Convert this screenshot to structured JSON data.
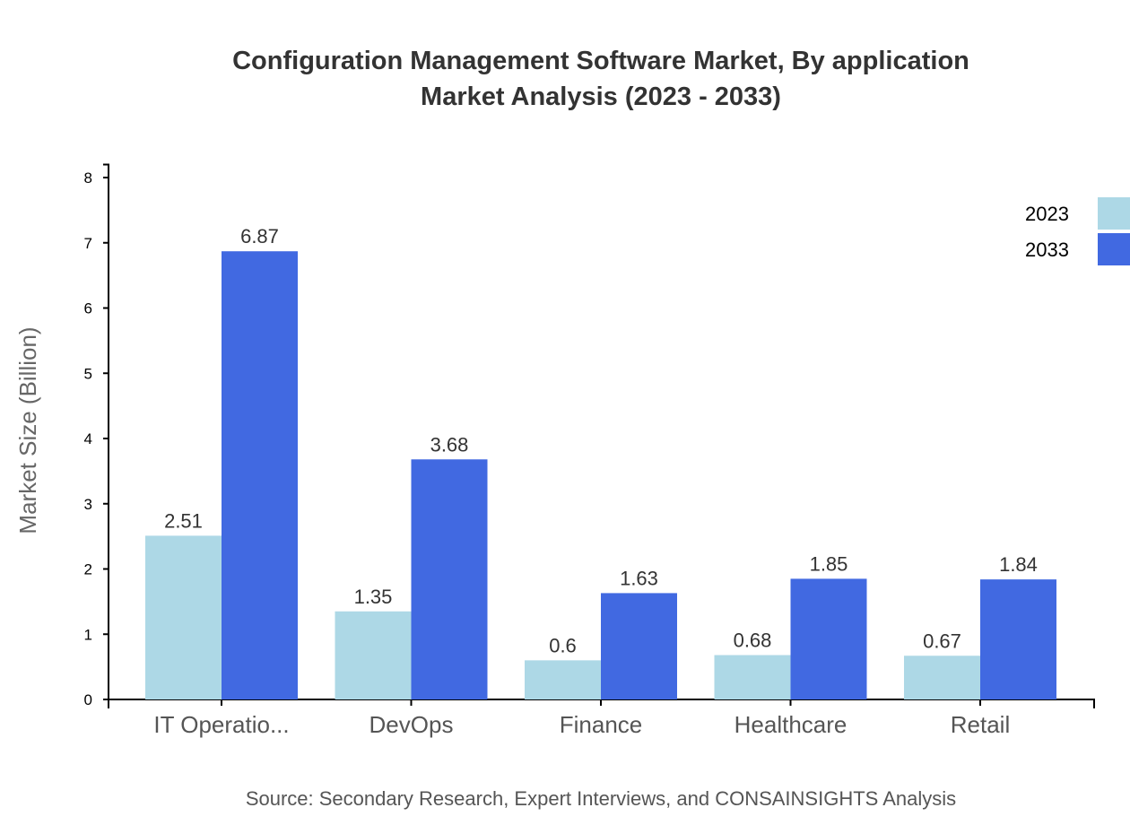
{
  "chart_data": {
    "type": "bar",
    "title": "Configuration Management Software Market, By application",
    "subtitle": "Market Analysis (2023 - 2033)",
    "xlabel": "",
    "ylabel": "Market Size (Billion)",
    "ylim": [
      0,
      8.2
    ],
    "yticks": [
      0,
      1,
      2,
      3,
      4,
      5,
      6,
      7,
      8
    ],
    "grid": false,
    "legend_position": "top-right",
    "categories": [
      "IT Operatio...",
      "DevOps",
      "Finance",
      "Healthcare",
      "Retail"
    ],
    "series": [
      {
        "name": "2023",
        "color": "#add8e6",
        "values": [
          2.51,
          1.35,
          0.6,
          0.68,
          0.67
        ]
      },
      {
        "name": "2033",
        "color": "#4169e1",
        "values": [
          6.87,
          3.68,
          1.63,
          1.85,
          1.84
        ]
      }
    ],
    "source": "Source: Secondary Research, Expert Interviews, and CONSAINSIGHTS Analysis"
  }
}
